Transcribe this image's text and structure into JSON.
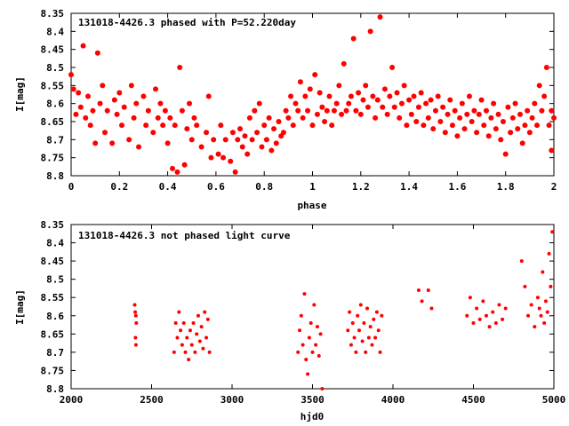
{
  "chart_data": [
    {
      "type": "scatter",
      "title": "131018-4426.3 phased with P=52.220day",
      "xlabel": "phase",
      "ylabel": "I[mag]",
      "xlim": [
        0,
        2
      ],
      "ylim": [
        8.8,
        8.35
      ],
      "y_inverted": true,
      "grid": false,
      "marker_color": "#ff0000",
      "x_ticks": [
        "0",
        "0.2",
        "0.4",
        "0.6",
        "0.8",
        "1",
        "1.2",
        "1.4",
        "1.6",
        "1.8",
        "2"
      ],
      "y_ticks": [
        "8.35",
        "8.4",
        "8.45",
        "8.5",
        "8.55",
        "8.6",
        "8.65",
        "8.7",
        "8.75",
        "8.8"
      ],
      "points": [
        [
          0.0,
          8.52
        ],
        [
          0.01,
          8.56
        ],
        [
          0.02,
          8.63
        ],
        [
          0.03,
          8.57
        ],
        [
          0.04,
          8.61
        ],
        [
          0.05,
          8.44
        ],
        [
          0.06,
          8.64
        ],
        [
          0.07,
          8.58
        ],
        [
          0.08,
          8.66
        ],
        [
          0.09,
          8.62
        ],
        [
          0.1,
          8.71
        ],
        [
          0.11,
          8.46
        ],
        [
          0.12,
          8.6
        ],
        [
          0.13,
          8.55
        ],
        [
          0.14,
          8.68
        ],
        [
          0.15,
          8.62
        ],
        [
          0.17,
          8.71
        ],
        [
          0.18,
          8.59
        ],
        [
          0.19,
          8.63
        ],
        [
          0.2,
          8.57
        ],
        [
          0.21,
          8.66
        ],
        [
          0.22,
          8.61
        ],
        [
          0.24,
          8.7
        ],
        [
          0.25,
          8.55
        ],
        [
          0.26,
          8.64
        ],
        [
          0.27,
          8.6
        ],
        [
          0.28,
          8.72
        ],
        [
          0.3,
          8.58
        ],
        [
          0.31,
          8.66
        ],
        [
          0.32,
          8.62
        ],
        [
          0.34,
          8.68
        ],
        [
          0.35,
          8.56
        ],
        [
          0.36,
          8.64
        ],
        [
          0.37,
          8.6
        ],
        [
          0.38,
          8.66
        ],
        [
          0.39,
          8.62
        ],
        [
          0.4,
          8.71
        ],
        [
          0.41,
          8.64
        ],
        [
          0.42,
          8.78
        ],
        [
          0.43,
          8.66
        ],
        [
          0.44,
          8.79
        ],
        [
          0.45,
          8.5
        ],
        [
          0.46,
          8.62
        ],
        [
          0.47,
          8.77
        ],
        [
          0.48,
          8.67
        ],
        [
          0.49,
          8.6
        ],
        [
          0.5,
          8.7
        ],
        [
          0.51,
          8.64
        ],
        [
          0.52,
          8.66
        ],
        [
          0.54,
          8.72
        ],
        [
          0.56,
          8.68
        ],
        [
          0.57,
          8.58
        ],
        [
          0.58,
          8.75
        ],
        [
          0.59,
          8.7
        ],
        [
          0.61,
          8.74
        ],
        [
          0.62,
          8.66
        ],
        [
          0.63,
          8.75
        ],
        [
          0.64,
          8.7
        ],
        [
          0.66,
          8.76
        ],
        [
          0.67,
          8.68
        ],
        [
          0.68,
          8.79
        ],
        [
          0.69,
          8.7
        ],
        [
          0.7,
          8.67
        ],
        [
          0.71,
          8.72
        ],
        [
          0.72,
          8.69
        ],
        [
          0.73,
          8.74
        ],
        [
          0.74,
          8.64
        ],
        [
          0.75,
          8.7
        ],
        [
          0.76,
          8.62
        ],
        [
          0.77,
          8.68
        ],
        [
          0.78,
          8.6
        ],
        [
          0.79,
          8.72
        ],
        [
          0.8,
          8.66
        ],
        [
          0.81,
          8.7
        ],
        [
          0.82,
          8.64
        ],
        [
          0.83,
          8.73
        ],
        [
          0.84,
          8.67
        ],
        [
          0.85,
          8.71
        ],
        [
          0.86,
          8.65
        ],
        [
          0.87,
          8.69
        ],
        [
          0.88,
          8.68
        ],
        [
          0.89,
          8.62
        ],
        [
          0.9,
          8.64
        ],
        [
          0.91,
          8.58
        ],
        [
          0.92,
          8.66
        ],
        [
          0.93,
          8.6
        ],
        [
          0.94,
          8.62
        ],
        [
          0.95,
          8.54
        ],
        [
          0.96,
          8.64
        ],
        [
          0.97,
          8.58
        ],
        [
          0.98,
          8.62
        ],
        [
          0.99,
          8.56
        ],
        [
          1.0,
          8.66
        ],
        [
          1.01,
          8.52
        ],
        [
          1.02,
          8.63
        ],
        [
          1.03,
          8.57
        ],
        [
          1.04,
          8.61
        ],
        [
          1.05,
          8.65
        ],
        [
          1.06,
          8.62
        ],
        [
          1.07,
          8.58
        ],
        [
          1.08,
          8.66
        ],
        [
          1.09,
          8.62
        ],
        [
          1.1,
          8.6
        ],
        [
          1.11,
          8.55
        ],
        [
          1.12,
          8.63
        ],
        [
          1.13,
          8.49
        ],
        [
          1.14,
          8.62
        ],
        [
          1.15,
          8.6
        ],
        [
          1.16,
          8.58
        ],
        [
          1.17,
          8.42
        ],
        [
          1.18,
          8.62
        ],
        [
          1.19,
          8.57
        ],
        [
          1.2,
          8.63
        ],
        [
          1.21,
          8.59
        ],
        [
          1.22,
          8.55
        ],
        [
          1.23,
          8.61
        ],
        [
          1.24,
          8.4
        ],
        [
          1.25,
          8.58
        ],
        [
          1.26,
          8.64
        ],
        [
          1.27,
          8.59
        ],
        [
          1.28,
          8.36
        ],
        [
          1.29,
          8.61
        ],
        [
          1.3,
          8.56
        ],
        [
          1.31,
          8.63
        ],
        [
          1.32,
          8.58
        ],
        [
          1.33,
          8.5
        ],
        [
          1.34,
          8.61
        ],
        [
          1.35,
          8.57
        ],
        [
          1.36,
          8.64
        ],
        [
          1.37,
          8.6
        ],
        [
          1.38,
          8.55
        ],
        [
          1.39,
          8.66
        ],
        [
          1.4,
          8.59
        ],
        [
          1.41,
          8.63
        ],
        [
          1.42,
          8.58
        ],
        [
          1.43,
          8.65
        ],
        [
          1.44,
          8.61
        ],
        [
          1.45,
          8.57
        ],
        [
          1.46,
          8.66
        ],
        [
          1.47,
          8.6
        ],
        [
          1.48,
          8.64
        ],
        [
          1.49,
          8.59
        ],
        [
          1.5,
          8.67
        ],
        [
          1.51,
          8.62
        ],
        [
          1.52,
          8.58
        ],
        [
          1.53,
          8.65
        ],
        [
          1.54,
          8.61
        ],
        [
          1.55,
          8.68
        ],
        [
          1.56,
          8.63
        ],
        [
          1.57,
          8.59
        ],
        [
          1.58,
          8.66
        ],
        [
          1.59,
          8.62
        ],
        [
          1.6,
          8.69
        ],
        [
          1.61,
          8.64
        ],
        [
          1.62,
          8.6
        ],
        [
          1.63,
          8.67
        ],
        [
          1.64,
          8.63
        ],
        [
          1.65,
          8.58
        ],
        [
          1.66,
          8.65
        ],
        [
          1.67,
          8.62
        ],
        [
          1.68,
          8.68
        ],
        [
          1.69,
          8.63
        ],
        [
          1.7,
          8.59
        ],
        [
          1.71,
          8.66
        ],
        [
          1.72,
          8.62
        ],
        [
          1.73,
          8.69
        ],
        [
          1.74,
          8.64
        ],
        [
          1.75,
          8.6
        ],
        [
          1.76,
          8.67
        ],
        [
          1.77,
          8.63
        ],
        [
          1.78,
          8.7
        ],
        [
          1.79,
          8.65
        ],
        [
          1.8,
          8.74
        ],
        [
          1.81,
          8.61
        ],
        [
          1.82,
          8.68
        ],
        [
          1.83,
          8.64
        ],
        [
          1.84,
          8.6
        ],
        [
          1.85,
          8.67
        ],
        [
          1.86,
          8.63
        ],
        [
          1.87,
          8.71
        ],
        [
          1.88,
          8.66
        ],
        [
          1.89,
          8.62
        ],
        [
          1.9,
          8.68
        ],
        [
          1.91,
          8.64
        ],
        [
          1.92,
          8.6
        ],
        [
          1.93,
          8.66
        ],
        [
          1.94,
          8.55
        ],
        [
          1.95,
          8.62
        ],
        [
          1.96,
          8.58
        ],
        [
          1.97,
          8.5
        ],
        [
          1.98,
          8.66
        ],
        [
          1.99,
          8.62
        ],
        [
          1.99,
          8.73
        ],
        [
          2.0,
          8.64
        ]
      ]
    },
    {
      "type": "scatter",
      "title": "131018-4426.3 not phased light curve",
      "xlabel": "hjd0",
      "ylabel": "I[mag]",
      "xlim": [
        2000,
        5000
      ],
      "ylim": [
        8.8,
        8.35
      ],
      "y_inverted": true,
      "grid": false,
      "marker_color": "#ff0000",
      "x_ticks": [
        "2000",
        "2500",
        "3000",
        "3500",
        "4000",
        "4500",
        "5000"
      ],
      "y_ticks": [
        "8.35",
        "8.4",
        "8.45",
        "8.5",
        "8.55",
        "8.6",
        "8.65",
        "8.7",
        "8.75",
        "8.8"
      ],
      "points": [
        [
          2395,
          8.57
        ],
        [
          2398,
          8.59
        ],
        [
          2402,
          8.6
        ],
        [
          2405,
          8.62
        ],
        [
          2400,
          8.66
        ],
        [
          2403,
          8.68
        ],
        [
          2640,
          8.7
        ],
        [
          2650,
          8.62
        ],
        [
          2660,
          8.66
        ],
        [
          2670,
          8.59
        ],
        [
          2680,
          8.64
        ],
        [
          2690,
          8.68
        ],
        [
          2700,
          8.62
        ],
        [
          2710,
          8.7
        ],
        [
          2720,
          8.66
        ],
        [
          2730,
          8.72
        ],
        [
          2740,
          8.64
        ],
        [
          2750,
          8.68
        ],
        [
          2760,
          8.62
        ],
        [
          2770,
          8.7
        ],
        [
          2780,
          8.65
        ],
        [
          2790,
          8.6
        ],
        [
          2800,
          8.67
        ],
        [
          2810,
          8.63
        ],
        [
          2820,
          8.69
        ],
        [
          2830,
          8.59
        ],
        [
          2840,
          8.66
        ],
        [
          2850,
          8.61
        ],
        [
          2860,
          8.7
        ],
        [
          3410,
          8.7
        ],
        [
          3420,
          8.64
        ],
        [
          3430,
          8.6
        ],
        [
          3440,
          8.68
        ],
        [
          3450,
          8.54
        ],
        [
          3460,
          8.72
        ],
        [
          3470,
          8.76
        ],
        [
          3480,
          8.66
        ],
        [
          3490,
          8.62
        ],
        [
          3500,
          8.7
        ],
        [
          3510,
          8.57
        ],
        [
          3520,
          8.68
        ],
        [
          3530,
          8.63
        ],
        [
          3540,
          8.71
        ],
        [
          3550,
          8.65
        ],
        [
          3560,
          8.8
        ],
        [
          3720,
          8.64
        ],
        [
          3730,
          8.59
        ],
        [
          3740,
          8.68
        ],
        [
          3750,
          8.62
        ],
        [
          3760,
          8.66
        ],
        [
          3770,
          8.7
        ],
        [
          3780,
          8.6
        ],
        [
          3790,
          8.64
        ],
        [
          3800,
          8.57
        ],
        [
          3810,
          8.67
        ],
        [
          3820,
          8.62
        ],
        [
          3830,
          8.7
        ],
        [
          3840,
          8.58
        ],
        [
          3850,
          8.66
        ],
        [
          3860,
          8.63
        ],
        [
          3870,
          8.68
        ],
        [
          3880,
          8.61
        ],
        [
          3890,
          8.66
        ],
        [
          3900,
          8.59
        ],
        [
          3910,
          8.64
        ],
        [
          3920,
          8.7
        ],
        [
          3930,
          8.6
        ],
        [
          4160,
          8.53
        ],
        [
          4180,
          8.56
        ],
        [
          4220,
          8.53
        ],
        [
          4240,
          8.58
        ],
        [
          4460,
          8.6
        ],
        [
          4480,
          8.55
        ],
        [
          4500,
          8.62
        ],
        [
          4520,
          8.58
        ],
        [
          4540,
          8.61
        ],
        [
          4560,
          8.56
        ],
        [
          4580,
          8.6
        ],
        [
          4600,
          8.63
        ],
        [
          4620,
          8.59
        ],
        [
          4640,
          8.62
        ],
        [
          4660,
          8.57
        ],
        [
          4680,
          8.61
        ],
        [
          4700,
          8.58
        ],
        [
          4800,
          8.45
        ],
        [
          4820,
          8.52
        ],
        [
          4840,
          8.6
        ],
        [
          4860,
          8.57
        ],
        [
          4880,
          8.63
        ],
        [
          4900,
          8.55
        ],
        [
          4910,
          8.58
        ],
        [
          4920,
          8.6
        ],
        [
          4930,
          8.48
        ],
        [
          4940,
          8.62
        ],
        [
          4950,
          8.56
        ],
        [
          4960,
          8.59
        ],
        [
          4970,
          8.43
        ],
        [
          4980,
          8.52
        ],
        [
          4990,
          8.37
        ]
      ]
    }
  ]
}
